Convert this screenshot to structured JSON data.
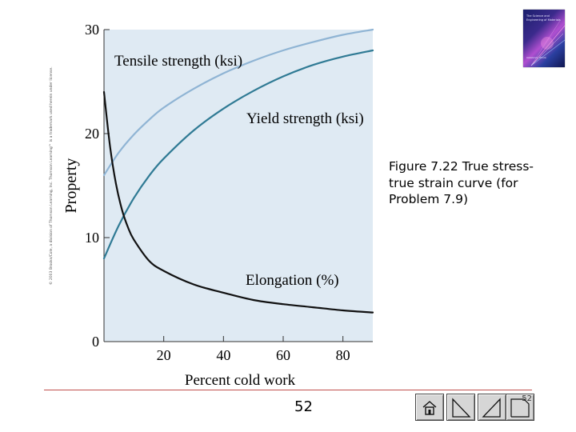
{
  "chart_data": {
    "type": "line",
    "xlabel": "Percent cold work",
    "ylabel": "Property",
    "xlim": [
      0,
      90
    ],
    "ylim": [
      0,
      30
    ],
    "xticks": [
      20,
      40,
      60,
      80
    ],
    "yticks": [
      0,
      10,
      20,
      30
    ],
    "series": [
      {
        "name": "Tensile strength (ksi)",
        "color": "#8fb4d4",
        "x": [
          0,
          5,
          10,
          15,
          20,
          30,
          40,
          50,
          60,
          70,
          80,
          90
        ],
        "y": [
          16,
          18.2,
          19.9,
          21.3,
          22.5,
          24.3,
          25.8,
          27.0,
          28.0,
          28.8,
          29.5,
          30.0
        ]
      },
      {
        "name": "Yield strength (ksi)",
        "color": "#2f7a94",
        "x": [
          0,
          5,
          10,
          15,
          20,
          30,
          40,
          50,
          60,
          70,
          80,
          90
        ],
        "y": [
          8,
          11.2,
          13.8,
          15.9,
          17.6,
          20.3,
          22.4,
          24.1,
          25.5,
          26.6,
          27.4,
          28.0
        ]
      },
      {
        "name": "Elongation (%)",
        "color": "#111111",
        "x": [
          0,
          2,
          4,
          6,
          8,
          10,
          15,
          20,
          30,
          40,
          50,
          60,
          70,
          80,
          90
        ],
        "y": [
          24,
          18.8,
          15.2,
          12.7,
          11.0,
          9.8,
          7.8,
          6.8,
          5.5,
          4.7,
          4.0,
          3.6,
          3.3,
          3.0,
          2.8
        ]
      }
    ]
  },
  "copyright": "© 2003 Brooks/Cole, a division of Thomson Learning, Inc.  Thomson Learning™ is a trademark used herein under license.",
  "caption": "Figure 7.22 True stress-true strain curve (for Problem 7.9)",
  "page_number": "52",
  "book_cover": {
    "title": "The Science and Engineering of Materials",
    "author": "Askeland · Phulé"
  },
  "nav": {
    "counter": "52"
  },
  "colors": {
    "plot_background": "#dfeaf3",
    "rule": "#c0504d"
  }
}
